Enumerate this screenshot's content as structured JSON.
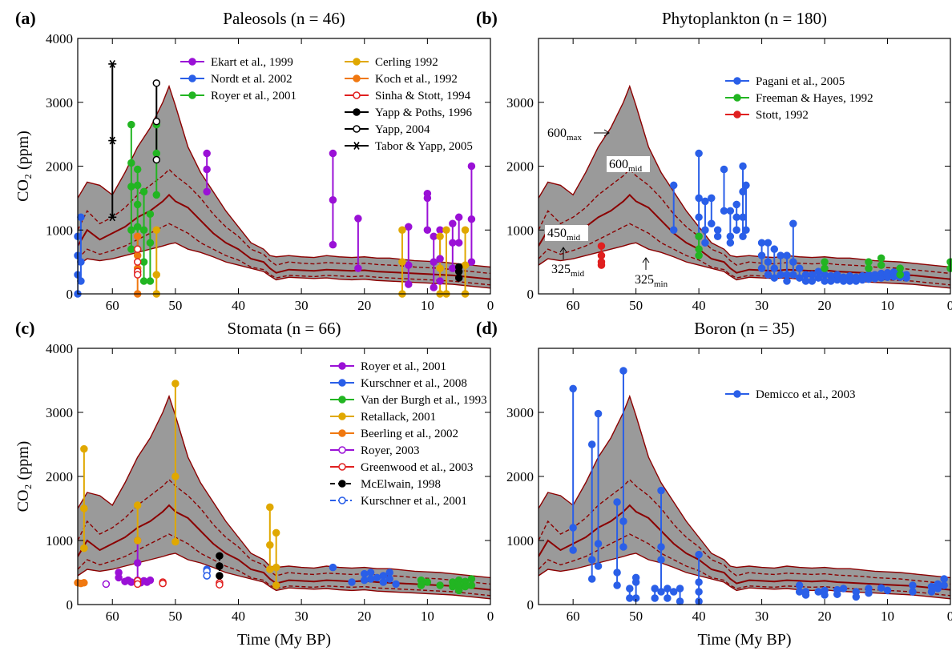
{
  "model_band": {
    "fill": "#9a9a9a",
    "line_color": "#8b0000",
    "x": [
      65.5,
      64,
      62,
      60,
      58,
      56,
      54,
      52,
      51,
      50,
      48,
      46,
      44,
      42,
      40,
      38,
      36,
      35,
      34,
      32,
      30,
      28,
      26,
      24,
      22,
      20,
      18,
      16,
      14,
      12,
      10,
      8,
      6,
      4,
      2,
      0
    ],
    "upper": [
      1500,
      1750,
      1700,
      1550,
      1900,
      2300,
      2600,
      3000,
      3250,
      2950,
      2300,
      1900,
      1600,
      1300,
      1050,
      800,
      700,
      600,
      580,
      600,
      580,
      570,
      600,
      580,
      570,
      580,
      560,
      560,
      540,
      520,
      510,
      500,
      480,
      460,
      440,
      420
    ],
    "mid_upper": [
      1000,
      1300,
      1100,
      1200,
      1350,
      1550,
      1700,
      1850,
      1950,
      1850,
      1700,
      1500,
      1250,
      1050,
      900,
      700,
      620,
      520,
      450,
      500,
      480,
      470,
      490,
      480,
      470,
      480,
      460,
      450,
      440,
      420,
      410,
      400,
      380,
      360,
      340,
      320
    ],
    "mid": [
      750,
      1000,
      850,
      950,
      1050,
      1200,
      1300,
      1450,
      1550,
      1450,
      1350,
      1150,
      950,
      800,
      700,
      550,
      500,
      400,
      330,
      380,
      370,
      360,
      380,
      370,
      360,
      370,
      350,
      340,
      330,
      320,
      310,
      300,
      290,
      270,
      250,
      230
    ],
    "mid_lower": [
      550,
      700,
      620,
      680,
      750,
      850,
      950,
      1050,
      1100,
      1050,
      950,
      800,
      700,
      600,
      530,
      420,
      380,
      300,
      250,
      290,
      280,
      270,
      290,
      280,
      270,
      280,
      260,
      250,
      240,
      230,
      220,
      210,
      200,
      180,
      160,
      140
    ],
    "lower": [
      450,
      550,
      520,
      550,
      600,
      650,
      700,
      750,
      780,
      800,
      700,
      650,
      580,
      500,
      450,
      400,
      350,
      280,
      220,
      260,
      250,
      240,
      250,
      230,
      220,
      230,
      210,
      200,
      190,
      180,
      170,
      160,
      150,
      130,
      110,
      90
    ]
  },
  "x_label": "Time (My BP)",
  "chart_data": [
    {
      "type": "scatter",
      "panel": "(a)",
      "title": "Paleosols (n = 46)",
      "y_label": "CO₂ (ppm)",
      "xlim": [
        65.5,
        0
      ],
      "ylim": [
        0,
        4000
      ],
      "xticks": [
        60,
        50,
        40,
        30,
        20,
        10,
        0
      ],
      "yticks": [
        0,
        1000,
        2000,
        3000,
        4000
      ],
      "series": [
        {
          "name": "Ekart et al., 1999",
          "color": "#9a11d6",
          "marker": "filled",
          "x": [
            45,
            45,
            45,
            25,
            25,
            25,
            21,
            21,
            13,
            13,
            13,
            10,
            10,
            10,
            9,
            9,
            9,
            8,
            8,
            8,
            6,
            6,
            6,
            5,
            5,
            3,
            3,
            3
          ],
          "values": [
            2200,
            1950,
            1600,
            2200,
            1470,
            770,
            1180,
            400,
            1050,
            450,
            150,
            1570,
            1500,
            1000,
            900,
            500,
            100,
            1000,
            550,
            200,
            1100,
            800,
            400,
            1200,
            800,
            2000,
            1170,
            500
          ]
        },
        {
          "name": "Nordt et al. 2002",
          "color": "#2a5fe8",
          "marker": "filled",
          "x": [
            65.5,
            65.5,
            65.5,
            65.5,
            65,
            65,
            65
          ],
          "values": [
            0,
            300,
            600,
            900,
            200,
            500,
            1200
          ]
        },
        {
          "name": "Royer et al., 2001",
          "color": "#22b522",
          "marker": "filled",
          "x": [
            57,
            57,
            57,
            57,
            57,
            56,
            56,
            56,
            56,
            56,
            55,
            55,
            55,
            55,
            54,
            54,
            54,
            53,
            53,
            53
          ],
          "values": [
            2650,
            2050,
            1680,
            1000,
            700,
            1950,
            1700,
            1400,
            1050,
            700,
            1600,
            1000,
            500,
            200,
            1250,
            800,
            200,
            2650,
            2200,
            1550
          ]
        },
        {
          "name": "Cerling 1992",
          "color": "#e0a800",
          "marker": "filled",
          "x": [
            53,
            53,
            53,
            14,
            14,
            14,
            8,
            8,
            8,
            7,
            7,
            4,
            4,
            4
          ],
          "values": [
            1000,
            300,
            0,
            1000,
            500,
            0,
            900,
            400,
            0,
            1000,
            0,
            1000,
            450,
            0
          ]
        },
        {
          "name": "Koch et al., 1992",
          "color": "#f07810",
          "marker": "filled",
          "x": [
            56,
            56,
            56,
            56
          ],
          "values": [
            900,
            600,
            400,
            0
          ]
        },
        {
          "name": "Sinha & Stott, 1994",
          "color": "#e02020",
          "marker": "open",
          "x": [
            56,
            56,
            56,
            56
          ],
          "values": [
            700,
            500,
            350,
            300
          ]
        },
        {
          "name": "Yapp & Poths, 1996",
          "color": "#000000",
          "marker": "filled",
          "x": [
            5,
            5,
            5
          ],
          "values": [
            420,
            350,
            250
          ]
        },
        {
          "name": "Yapp, 2004",
          "color": "#000000",
          "marker": "open",
          "x": [
            53,
            53,
            53
          ],
          "values": [
            3300,
            2700,
            2100
          ]
        },
        {
          "name": "Tabor & Yapp, 2005",
          "color": "#000000",
          "marker": "star",
          "x": [
            60,
            60,
            60
          ],
          "values": [
            3600,
            2400,
            1200
          ]
        }
      ]
    },
    {
      "type": "scatter",
      "panel": "(b)",
      "title": "Phytoplankton (n = 180)",
      "xlim": [
        65.5,
        0
      ],
      "ylim": [
        0,
        4000
      ],
      "xticks": [
        60,
        50,
        40,
        30,
        20,
        10,
        0
      ],
      "yticks": [
        0,
        1000,
        2000,
        3000
      ],
      "annotations": [
        {
          "text": "600",
          "sub": "max"
        },
        {
          "text": "600",
          "sub": "mid"
        },
        {
          "text": "450",
          "sub": "mid"
        },
        {
          "text": "325",
          "sub": "mid"
        },
        {
          "text": "325",
          "sub": "min"
        }
      ],
      "series": [
        {
          "name": "Pagani et al., 2005",
          "color": "#2a5fe8",
          "marker": "filled",
          "x": [
            44,
            44,
            40,
            40,
            40,
            40,
            39,
            39,
            39,
            38,
            38,
            37,
            37,
            36,
            36,
            35,
            35,
            35,
            34,
            34,
            34,
            33,
            33,
            33,
            33,
            32.5,
            32.5,
            30,
            30,
            30,
            29,
            29,
            29,
            28,
            28,
            28,
            27,
            27,
            26,
            26,
            26,
            25,
            25,
            25,
            24,
            24,
            23,
            23,
            22,
            22,
            21,
            21,
            20,
            20,
            19,
            19,
            18,
            18,
            17,
            17,
            16,
            16,
            15,
            15,
            14,
            14,
            13,
            13,
            12,
            12,
            11,
            11,
            10,
            10,
            9,
            9,
            8,
            8,
            7,
            7
          ],
          "values": [
            1700,
            1000,
            2200,
            1500,
            1200,
            900,
            1450,
            1000,
            800,
            1500,
            1100,
            1000,
            900,
            1950,
            1300,
            1300,
            900,
            800,
            1400,
            1200,
            1000,
            2000,
            1600,
            1200,
            900,
            1700,
            1000,
            800,
            600,
            400,
            800,
            500,
            300,
            700,
            400,
            250,
            600,
            300,
            600,
            300,
            200,
            1100,
            500,
            300,
            400,
            250,
            300,
            200,
            300,
            200,
            350,
            250,
            300,
            200,
            280,
            200,
            300,
            220,
            260,
            200,
            280,
            200,
            260,
            200,
            280,
            220,
            300,
            230,
            300,
            240,
            320,
            250,
            330,
            260,
            340,
            270,
            320,
            260,
            300,
            250
          ]
        },
        {
          "name": "Freeman & Hayes, 1992",
          "color": "#22b522",
          "marker": "filled",
          "x": [
            40,
            40,
            40,
            20,
            20,
            13,
            13,
            11,
            11,
            8,
            8,
            0,
            0
          ],
          "values": [
            900,
            700,
            600,
            500,
            400,
            500,
            400,
            560,
            450,
            400,
            300,
            500,
            400
          ]
        },
        {
          "name": "Stott, 1992",
          "color": "#e02020",
          "marker": "filled",
          "x": [
            55.5,
            55.5,
            55.5,
            55.5
          ],
          "values": [
            750,
            600,
            500,
            450
          ]
        }
      ]
    },
    {
      "type": "scatter",
      "panel": "(c)",
      "title": "Stomata (n = 66)",
      "y_label": "CO₂ (ppm)",
      "xlim": [
        65.5,
        0
      ],
      "ylim": [
        0,
        4000
      ],
      "xticks": [
        60,
        50,
        40,
        30,
        20,
        10,
        0
      ],
      "yticks": [
        0,
        1000,
        2000,
        3000,
        4000
      ],
      "series": [
        {
          "name": "Royer et al., 2001",
          "color": "#9a11d6",
          "marker": "filled",
          "x": [
            59,
            59,
            58,
            57.5,
            57,
            56,
            56,
            56,
            55.5,
            55,
            54.5,
            54
          ],
          "values": [
            500,
            420,
            360,
            380,
            350,
            1000,
            650,
            380,
            340,
            370,
            350,
            380
          ]
        },
        {
          "name": "Kurschner et al., 2008",
          "color": "#2a5fe8",
          "marker": "filled",
          "x": [
            45,
            45,
            25,
            22,
            20,
            20,
            19,
            19,
            18,
            17,
            17,
            16,
            16,
            15
          ],
          "values": [
            550,
            450,
            580,
            350,
            480,
            380,
            500,
            400,
            420,
            450,
            350,
            500,
            400,
            320
          ]
        },
        {
          "name": "Van der Burgh et al., 1993",
          "color": "#22b522",
          "marker": "filled",
          "x": [
            11,
            11,
            10,
            8,
            6,
            6,
            5,
            5,
            5,
            4,
            4,
            3,
            3
          ],
          "values": [
            380,
            300,
            350,
            300,
            350,
            280,
            380,
            300,
            220,
            360,
            280,
            400,
            300
          ]
        },
        {
          "name": "Retallack, 2001",
          "color": "#e0a800",
          "marker": "filled",
          "x": [
            64.5,
            64.5,
            64.5,
            56,
            56,
            50,
            50,
            50,
            35,
            35,
            35,
            34,
            34,
            34
          ],
          "values": [
            2430,
            1500,
            880,
            1550,
            1000,
            3450,
            2000,
            980,
            1520,
            930,
            550,
            1120,
            580,
            300
          ]
        },
        {
          "name": "Beerling et al., 2002",
          "color": "#f07810",
          "marker": "filled",
          "x": [
            65.5,
            65,
            64.5
          ],
          "values": [
            340,
            330,
            340
          ]
        },
        {
          "name": "Royer, 2003",
          "color": "#9a11d6",
          "marker": "open",
          "x": [
            61
          ],
          "values": [
            320
          ]
        },
        {
          "name": "Greenwood et al., 2003",
          "color": "#e02020",
          "marker": "open",
          "x": [
            56,
            56,
            52,
            52,
            43,
            43
          ],
          "values": [
            370,
            320,
            350,
            330,
            340,
            310
          ]
        },
        {
          "name": "McElwain, 1998",
          "color": "#000000",
          "marker": "filled",
          "dash": "dashed",
          "x": [
            43,
            43,
            43
          ],
          "values": [
            760,
            600,
            450
          ]
        },
        {
          "name": "Kurschner et al., 2001",
          "color": "#2a5fe8",
          "marker": "open",
          "dash": "dashdot",
          "x": [
            45,
            45
          ],
          "values": [
            520,
            450
          ]
        }
      ]
    },
    {
      "type": "scatter",
      "panel": "(d)",
      "title": "Boron (n = 35)",
      "xlim": [
        65.5,
        0
      ],
      "ylim": [
        0,
        4000
      ],
      "xticks": [
        60,
        50,
        40,
        30,
        20,
        10,
        0
      ],
      "yticks": [
        0,
        1000,
        2000,
        3000
      ],
      "series": [
        {
          "name": "Demicco et al., 2003",
          "color": "#2a5fe8",
          "marker": "filled",
          "x": [
            60,
            60,
            60,
            57,
            57,
            57,
            56,
            56,
            56,
            53,
            53,
            53,
            52,
            52,
            52,
            51,
            51,
            50,
            50,
            50,
            47,
            47,
            46,
            46,
            46,
            46,
            45,
            45,
            44,
            43,
            43,
            40,
            40,
            40,
            40,
            24,
            24,
            23,
            23,
            21,
            20,
            20,
            18,
            18,
            17,
            15,
            15,
            13,
            13,
            11,
            10,
            6,
            6,
            3,
            3,
            2,
            2,
            1,
            1
          ],
          "values": [
            3370,
            1200,
            850,
            2500,
            700,
            400,
            2980,
            950,
            600,
            1600,
            500,
            300,
            3650,
            1300,
            900,
            100,
            250,
            350,
            420,
            100,
            250,
            100,
            1780,
            900,
            700,
            200,
            250,
            100,
            200,
            250,
            50,
            780,
            350,
            200,
            50,
            300,
            200,
            200,
            150,
            200,
            220,
            150,
            230,
            160,
            250,
            200,
            120,
            250,
            180,
            260,
            220,
            300,
            200,
            280,
            200,
            320,
            250,
            400,
            300
          ]
        }
      ]
    }
  ]
}
